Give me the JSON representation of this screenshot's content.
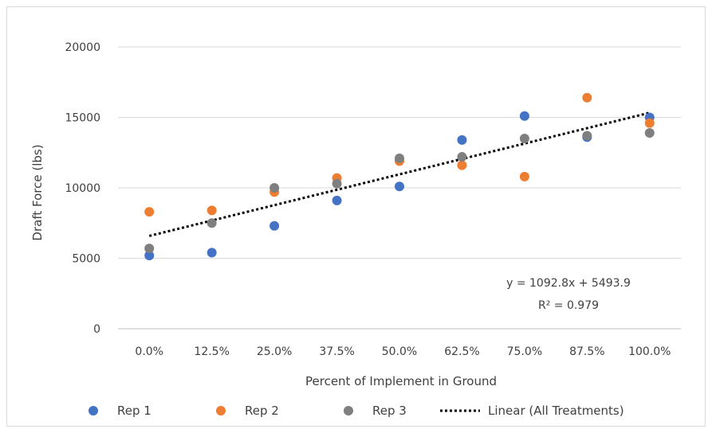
{
  "chart_data": {
    "type": "scatter",
    "title": "",
    "xlabel": "Percent of Implement in Ground",
    "ylabel": "Draft Force (lbs)",
    "categories": [
      "0.0%",
      "12.5%",
      "25.0%",
      "37.5%",
      "50.0%",
      "62.5%",
      "75.0%",
      "87.5%",
      "100.0%"
    ],
    "ylim": [
      0,
      20000
    ],
    "yticks": [
      0,
      5000,
      10000,
      15000,
      20000
    ],
    "grid": true,
    "legend_position": "bottom",
    "series": [
      {
        "name": "Rep 1",
        "color": "#4472c4",
        "values": [
          5200,
          5400,
          7300,
          9100,
          10100,
          13400,
          15100,
          13600,
          15000
        ]
      },
      {
        "name": "Rep 2",
        "color": "#ed7d31",
        "values": [
          8300,
          8400,
          9700,
          10700,
          11900,
          11600,
          10800,
          16400,
          14600
        ]
      },
      {
        "name": "Rep 3",
        "color": "#7f7f7f",
        "values": [
          5700,
          7500,
          10000,
          10300,
          12100,
          12200,
          13500,
          13700,
          13900
        ]
      }
    ],
    "trendline": {
      "name": "Linear (All Treatments)",
      "slope": 1092.8,
      "intercept": 5493.9,
      "equation": "y = 1092.8x + 5493.9",
      "r_squared": "R² = 0.979",
      "color": "#000000"
    }
  }
}
